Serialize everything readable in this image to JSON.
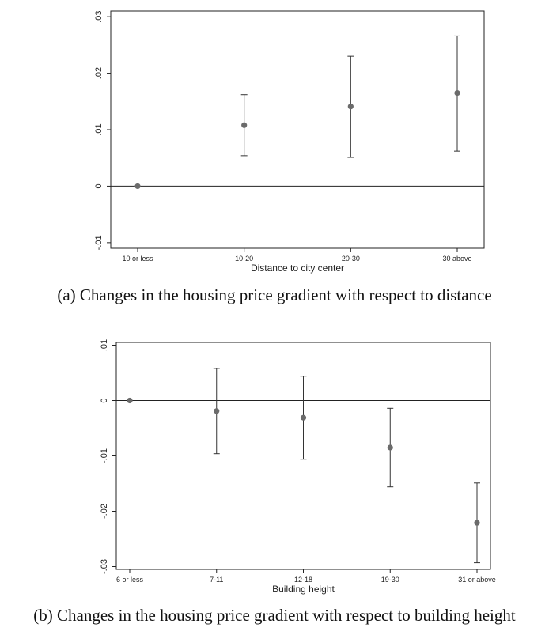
{
  "chart_data": [
    {
      "type": "scatter",
      "title": "",
      "xlabel": "Distance to city center",
      "ylabel": "",
      "categories": [
        "10 or less",
        "10-20",
        "20-30",
        "30 above"
      ],
      "values": [
        0,
        0.0108,
        0.0141,
        0.0165
      ],
      "ci_lower": [
        0,
        0.0054,
        0.0051,
        0.0062
      ],
      "ci_upper": [
        0,
        0.0162,
        0.023,
        0.0266
      ],
      "ylim": [
        -0.011,
        0.031
      ],
      "yticks": [
        -0.01,
        0,
        0.01,
        0.02,
        0.03
      ],
      "ytick_labels": [
        "-.01",
        "0",
        ".01",
        ".02",
        ".03"
      ],
      "reference_line": 0,
      "grid": false,
      "caption": "(a)  Changes in the housing price gradient with respect to distance"
    },
    {
      "type": "scatter",
      "title": "",
      "xlabel": "Building height",
      "ylabel": "",
      "categories": [
        "6 or less",
        "7-11",
        "12-18",
        "19-30",
        "31 or above"
      ],
      "values": [
        0,
        -0.0019,
        -0.0031,
        -0.0085,
        -0.0221
      ],
      "ci_lower": [
        0,
        -0.0096,
        -0.0106,
        -0.0156,
        -0.0293
      ],
      "ci_upper": [
        0,
        0.0058,
        0.0044,
        -0.0014,
        -0.0149
      ],
      "ylim": [
        -0.0305,
        0.0105
      ],
      "yticks": [
        -0.03,
        -0.02,
        -0.01,
        0,
        0.01
      ],
      "ytick_labels": [
        "-.03",
        "-.02",
        "-.01",
        "0",
        ".01"
      ],
      "reference_line": 0,
      "grid": false,
      "caption": "(b)  Changes in the housing price gradient with respect to building height"
    }
  ],
  "colors": {
    "marker": "#6b6b6b",
    "line": "#333333",
    "axis": "#222222"
  }
}
